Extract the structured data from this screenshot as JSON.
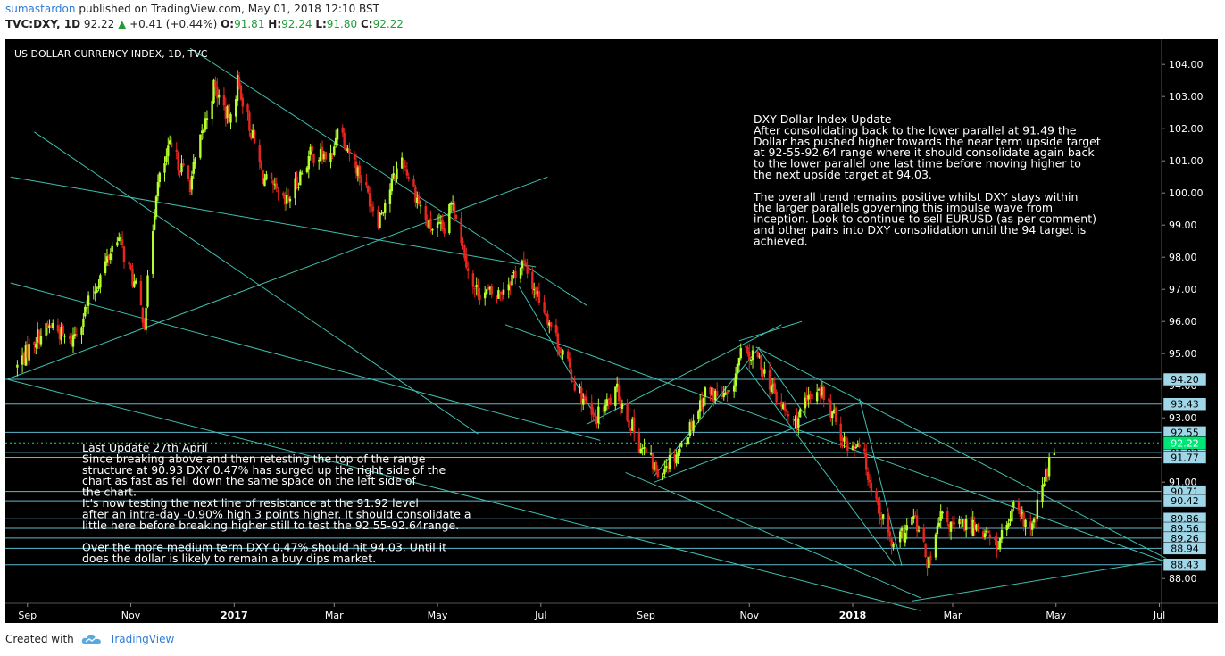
{
  "header": {
    "user": "sumastardon",
    "published": "published on TradingView.com, May 01, 2018 12:10 BST",
    "symbol": "TVC:DXY, 1D",
    "last": "92.22",
    "change": "+0.41 (+0.44%)",
    "o_label": "O:",
    "o_val": "91.81",
    "h_label": "H:",
    "h_val": "92.24",
    "l_label": "L:",
    "l_val": "91.80",
    "c_label": "C:",
    "c_val": "92.22"
  },
  "footer": {
    "created_with": "Created with",
    "brand": "TradingView"
  },
  "chart_data": {
    "type": "candlestick",
    "title": "US DOLLAR CURRENCY INDEX, 1D, TVC",
    "x_tick_labels": [
      "Sep",
      "Nov",
      "2017",
      "Mar",
      "May",
      "Jul",
      "Sep",
      "Nov",
      "2018",
      "Mar",
      "May",
      "Jul"
    ],
    "y_ticks": [
      88.0,
      91.0,
      93.0,
      94.0,
      95.0,
      96.0,
      97.0,
      98.0,
      99.0,
      100.0,
      101.0,
      102.0,
      103.0,
      104.0
    ],
    "ylim": [
      87.2,
      104.7
    ],
    "level_labels": [
      {
        "label": "94.20",
        "value": 94.2
      },
      {
        "label": "93.43",
        "value": 93.43
      },
      {
        "label": "92.55",
        "value": 92.55
      },
      {
        "label": "92.22",
        "value": 92.22,
        "current": true
      },
      {
        "label": "91.92",
        "value": 91.92
      },
      {
        "label": "91.77",
        "value": 91.77
      },
      {
        "label": "90.71",
        "value": 90.71
      },
      {
        "label": "90.42",
        "value": 90.42
      },
      {
        "label": "89.86",
        "value": 89.86
      },
      {
        "label": "89.56",
        "value": 89.56
      },
      {
        "label": "89.26",
        "value": 89.26
      },
      {
        "label": "88.94",
        "value": 88.94
      },
      {
        "label": "88.43",
        "value": 88.43
      }
    ],
    "price_path": [
      [
        "2016-08-26",
        94.6
      ],
      [
        "2016-09-06",
        95.5
      ],
      [
        "2016-09-16",
        95.9
      ],
      [
        "2016-09-26",
        95.3
      ],
      [
        "2016-10-10",
        96.9
      ],
      [
        "2016-10-24",
        98.7
      ],
      [
        "2016-11-04",
        97.0
      ],
      [
        "2016-11-09",
        96.0
      ],
      [
        "2016-11-16",
        100.1
      ],
      [
        "2016-11-24",
        101.4
      ],
      [
        "2016-12-06",
        100.3
      ],
      [
        "2016-12-20",
        103.3
      ],
      [
        "2016-12-30",
        102.2
      ],
      [
        "2017-01-03",
        103.5
      ],
      [
        "2017-01-18",
        100.5
      ],
      [
        "2017-01-31",
        99.6
      ],
      [
        "2017-02-15",
        101.2
      ],
      [
        "2017-02-28",
        101.1
      ],
      [
        "2017-03-03",
        102.2
      ],
      [
        "2017-03-27",
        99.2
      ],
      [
        "2017-04-10",
        101.1
      ],
      [
        "2017-04-25",
        99.0
      ],
      [
        "2017-05-05",
        98.8
      ],
      [
        "2017-05-10",
        99.8
      ],
      [
        "2017-05-22",
        97.0
      ],
      [
        "2017-06-05",
        96.8
      ],
      [
        "2017-06-20",
        97.8
      ],
      [
        "2017-07-03",
        96.4
      ],
      [
        "2017-07-20",
        94.2
      ],
      [
        "2017-08-01",
        92.9
      ],
      [
        "2017-08-15",
        93.8
      ],
      [
        "2017-08-28",
        92.2
      ],
      [
        "2017-09-08",
        91.3
      ],
      [
        "2017-09-22",
        92.1
      ],
      [
        "2017-10-06",
        93.8
      ],
      [
        "2017-10-20",
        93.6
      ],
      [
        "2017-10-27",
        95.0
      ],
      [
        "2017-11-07",
        94.8
      ],
      [
        "2017-11-17",
        93.6
      ],
      [
        "2017-11-27",
        92.8
      ],
      [
        "2017-12-12",
        94.0
      ],
      [
        "2017-12-29",
        92.1
      ],
      [
        "2018-01-05",
        92.3
      ],
      [
        "2018-01-12",
        90.9
      ],
      [
        "2018-01-25",
        88.9
      ],
      [
        "2018-02-06",
        89.9
      ],
      [
        "2018-02-15",
        88.4
      ],
      [
        "2018-02-22",
        89.9
      ],
      [
        "2018-03-01",
        89.6
      ],
      [
        "2018-03-15",
        89.7
      ],
      [
        "2018-03-27",
        89.0
      ],
      [
        "2018-04-06",
        90.1
      ],
      [
        "2018-04-17",
        89.5
      ],
      [
        "2018-04-23",
        90.9
      ],
      [
        "2018-05-01",
        92.22
      ]
    ],
    "annotations": [
      {
        "id": "update",
        "lines": [
          "DXY Dollar Index Update",
          "After consolidating back to the lower parallel at 91.49 the",
          "Dollar has pushed higher towards the near term upside target",
          "at 92-55-92.64 range where it should consolidate again back",
          "to the lower parallel one last time before moving higher to",
          "the next upside target at 94.03.",
          "",
          "The overall trend remains positive whilst DXY stays within",
          "the larger parallels governing this impulse wave from",
          "inception. Look to continue to sell EURUSD (as per comment)",
          "and other pairs into DXY consolidation until the 94 target is",
          "achieved."
        ]
      },
      {
        "id": "last-update",
        "lines": [
          "Last Update   27th April",
          "Since breaking above and then retesting the top of the range",
          "structure at 90.93 DXY 0.47% has surged up the right side of the",
          "chart as fast as fell down the same space on the left side of",
          "the chart.",
          "It's now testing the next line of resistance at the 91.92 level",
          "after an intra-day -0.90% high 3 points higher. It should consolidate a",
          "little here before breaking higher still to test the 92.55-92.64range.",
          "",
          "Over the more medium term DXY 0.47% should hit 94.03. Until it",
          "does the dollar is likely to remain a buy dips market."
        ]
      }
    ],
    "colors": {
      "background": "#000000",
      "up": "#b6ff2e",
      "down": "#e8251e",
      "trendline": "#3fbfae",
      "level": "#5fb8cf",
      "label_bg": "#9fd6e8",
      "current": "#00e676",
      "text": "#ffffff"
    }
  }
}
